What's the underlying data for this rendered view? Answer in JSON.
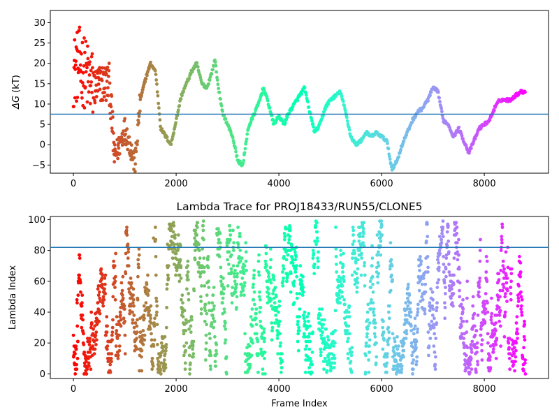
{
  "chart_data": [
    {
      "type": "scatter",
      "title": "",
      "xlabel": "",
      "ylabel": "ΔG (kT)",
      "ylabel_symbol": "ΔG",
      "ylabel_unit": "(kT)",
      "xlim": [
        -450,
        9250
      ],
      "ylim": [
        -7,
        33
      ],
      "xticks": [
        0,
        2000,
        4000,
        6000,
        8000
      ],
      "yticks": [
        -5,
        0,
        5,
        10,
        15,
        20,
        25,
        30
      ],
      "xtick_labels": [
        "0",
        "2000",
        "4000",
        "6000",
        "8000"
      ],
      "ytick_labels": [
        "−5",
        "0",
        "5",
        "10",
        "15",
        "20",
        "25",
        "30"
      ],
      "hline": 7.5,
      "hline_color": "#1f77b4",
      "colormap": "rainbow",
      "color_note": "points colored red at frame 0 through violet at last frame",
      "n_frames": 8800,
      "keypoints": [
        [
          0,
          18
        ],
        [
          120,
          20
        ],
        [
          250,
          17
        ],
        [
          400,
          14
        ],
        [
          550,
          15
        ],
        [
          700,
          15
        ],
        [
          800,
          -3
        ],
        [
          900,
          0
        ],
        [
          1000,
          4
        ],
        [
          1100,
          0
        ],
        [
          1200,
          -5
        ],
        [
          1300,
          11
        ],
        [
          1400,
          16
        ],
        [
          1500,
          20
        ],
        [
          1600,
          18
        ],
        [
          1700,
          4
        ],
        [
          1800,
          2
        ],
        [
          1900,
          0
        ],
        [
          2000,
          6
        ],
        [
          2100,
          12
        ],
        [
          2200,
          15
        ],
        [
          2300,
          18
        ],
        [
          2400,
          20
        ],
        [
          2500,
          15
        ],
        [
          2600,
          14
        ],
        [
          2700,
          18
        ],
        [
          2760,
          21
        ],
        [
          2800,
          16
        ],
        [
          2900,
          8
        ],
        [
          3000,
          5
        ],
        [
          3100,
          2
        ],
        [
          3200,
          -4
        ],
        [
          3300,
          -5
        ],
        [
          3400,
          4
        ],
        [
          3500,
          7
        ],
        [
          3600,
          10
        ],
        [
          3700,
          14
        ],
        [
          3800,
          10
        ],
        [
          3900,
          5
        ],
        [
          4000,
          7
        ],
        [
          4100,
          5
        ],
        [
          4200,
          8
        ],
        [
          4300,
          10
        ],
        [
          4400,
          12
        ],
        [
          4500,
          14
        ],
        [
          4600,
          8
        ],
        [
          4700,
          3
        ],
        [
          4800,
          5
        ],
        [
          4900,
          9
        ],
        [
          5000,
          11
        ],
        [
          5100,
          12
        ],
        [
          5200,
          13
        ],
        [
          5300,
          8
        ],
        [
          5400,
          2
        ],
        [
          5500,
          0
        ],
        [
          5600,
          1
        ],
        [
          5700,
          3
        ],
        [
          5800,
          2
        ],
        [
          5900,
          3
        ],
        [
          6000,
          2
        ],
        [
          6100,
          1
        ],
        [
          6200,
          -6
        ],
        [
          6300,
          -4
        ],
        [
          6400,
          0
        ],
        [
          6500,
          3
        ],
        [
          6600,
          6
        ],
        [
          6700,
          8
        ],
        [
          6800,
          9
        ],
        [
          6900,
          11
        ],
        [
          7000,
          14
        ],
        [
          7100,
          13
        ],
        [
          7200,
          6
        ],
        [
          7300,
          5
        ],
        [
          7400,
          2
        ],
        [
          7500,
          4
        ],
        [
          7600,
          1
        ],
        [
          7700,
          -2
        ],
        [
          7800,
          1
        ],
        [
          7900,
          4
        ],
        [
          8000,
          5
        ],
        [
          8100,
          6
        ],
        [
          8200,
          9
        ],
        [
          8300,
          11
        ],
        [
          8400,
          11
        ],
        [
          8500,
          11
        ],
        [
          8600,
          12
        ],
        [
          8700,
          13
        ],
        [
          8800,
          13
        ]
      ]
    },
    {
      "type": "scatter",
      "title": "Lambda Trace for PROJ18433/RUN55/CLONE5",
      "xlabel": "Frame Index",
      "ylabel": "Lambda Index",
      "xlim": [
        -450,
        9250
      ],
      "ylim": [
        -3,
        102
      ],
      "xticks": [
        0,
        2000,
        4000,
        6000,
        8000
      ],
      "yticks": [
        0,
        20,
        40,
        60,
        80,
        100
      ],
      "xtick_labels": [
        "0",
        "2000",
        "4000",
        "6000",
        "8000"
      ],
      "ytick_labels": [
        "0",
        "20",
        "40",
        "60",
        "80",
        "100"
      ],
      "hline": 82,
      "hline_color": "#1f77b4",
      "colormap": "rainbow",
      "color_note": "points colored red at frame 0 through violet at last frame",
      "n_frames": 8800,
      "range": [
        0,
        99
      ]
    }
  ]
}
